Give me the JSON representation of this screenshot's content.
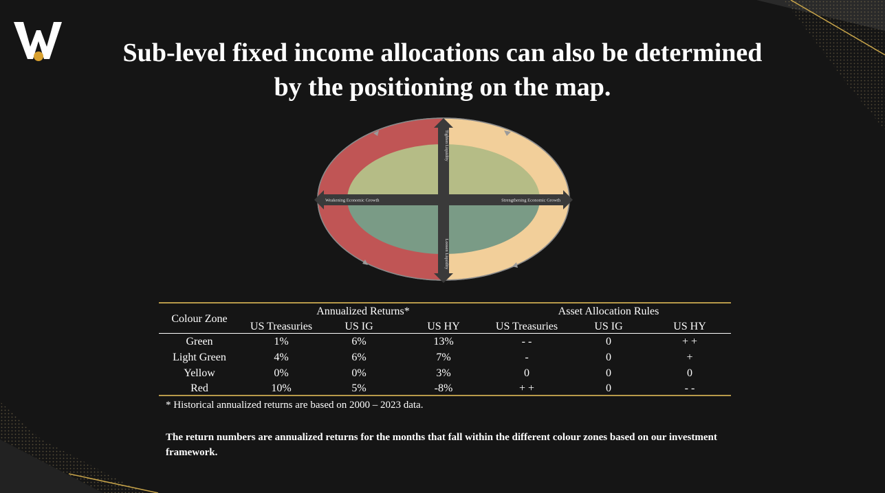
{
  "title_line1": "Sub-level fixed income allocations can also be determined",
  "title_line2": "by the positioning on the map.",
  "diagram": {
    "axis_top": "Tighten Liquidity",
    "axis_bottom": "Loosen Liquidity",
    "axis_left": "Weakening Economic Growth",
    "axis_right": "Strengthening Economic Growth",
    "colors": {
      "red": "#c05555",
      "yellow": "#f2cf9a",
      "light_green": "#b5bc86",
      "green": "#7a9b86",
      "arrow": "#3a3a3a"
    }
  },
  "table": {
    "col_zone": "Colour Zone",
    "group_returns": "Annualized Returns*",
    "group_rules": "Asset Allocation Rules",
    "subheaders": [
      "US Treasuries",
      "US IG",
      "US HY",
      "US Treasuries",
      "US IG",
      "US HY"
    ],
    "rows": [
      {
        "zone": "Green",
        "cells": [
          "1%",
          "6%",
          "13%",
          "- -",
          "0",
          "+ +"
        ]
      },
      {
        "zone": "Light Green",
        "cells": [
          "4%",
          "6%",
          "7%",
          "-",
          "0",
          "+"
        ]
      },
      {
        "zone": "Yellow",
        "cells": [
          "0%",
          "0%",
          "3%",
          "0",
          "0",
          "0"
        ]
      },
      {
        "zone": "Red",
        "cells": [
          "10%",
          "5%",
          "-8%",
          "+ +",
          "0",
          "- -"
        ]
      }
    ]
  },
  "footnote": "* Historical annualized returns are based on 2000 – 2023 data.",
  "note": "The return numbers are annualized returns for the months that fall within the different colour zones based on our investment framework."
}
